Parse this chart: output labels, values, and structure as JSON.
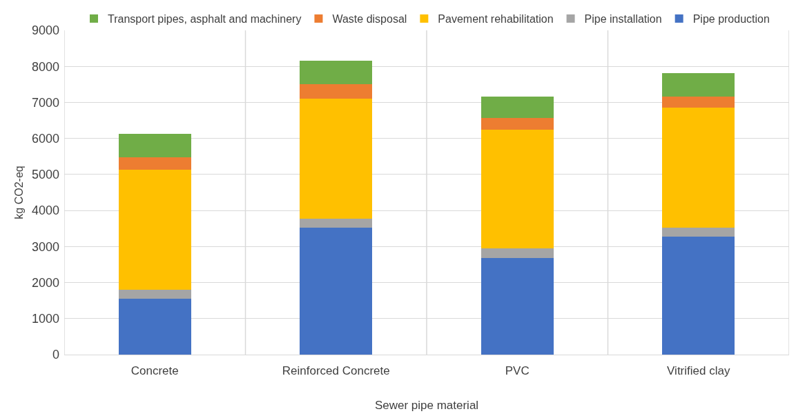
{
  "chart_data": {
    "type": "bar",
    "stacked": true,
    "xlabel": "Sewer pipe material",
    "ylabel": "kg CO2-eq",
    "categories": [
      "Concrete",
      "Reinforced Concrete",
      "PVC",
      "Vitrified clay"
    ],
    "series": [
      {
        "name": "Pipe production",
        "color": "#4472c4",
        "values": [
          1550,
          3530,
          2690,
          3270
        ]
      },
      {
        "name": "Pipe installation",
        "color": "#a5a5a5",
        "values": [
          250,
          250,
          250,
          250
        ]
      },
      {
        "name": "Pavement rehabilitation",
        "color": "#ffc000",
        "values": [
          3330,
          3330,
          3310,
          3330
        ]
      },
      {
        "name": "Waste disposal",
        "color": "#ed7d31",
        "values": [
          350,
          390,
          310,
          320
        ]
      },
      {
        "name": "Transport pipes, asphalt and machinery",
        "color": "#70ad47",
        "values": [
          650,
          660,
          610,
          650
        ]
      }
    ],
    "ylim": [
      0,
      9000
    ],
    "yticks": [
      0,
      1000,
      2000,
      3000,
      4000,
      5000,
      6000,
      7000,
      8000,
      9000
    ],
    "grid": true,
    "legend": "top"
  }
}
